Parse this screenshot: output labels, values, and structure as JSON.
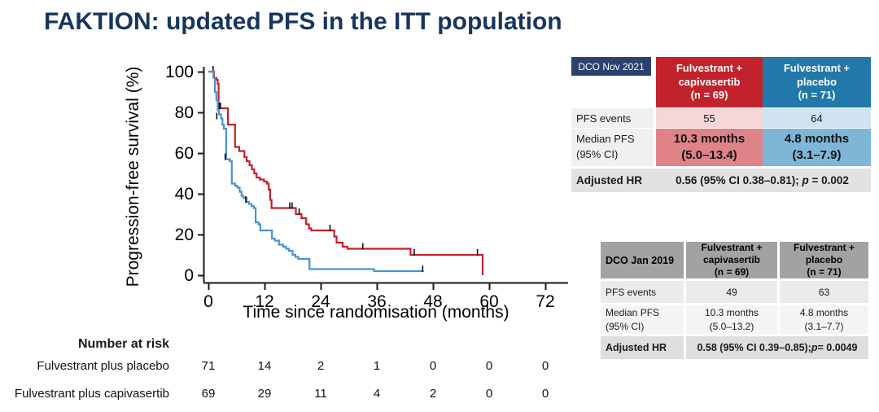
{
  "slide": {
    "title": "FAKTION: updated PFS in the ITT population"
  },
  "colors": {
    "title_navy": "#17365d",
    "chip_navy": "#2c426e",
    "capivasertib_red": "#c1222b",
    "capivasertib_red_light": "#f6d6d7",
    "capivasertib_red_mid": "#e08389",
    "placebo_blue": "#2279a9",
    "placebo_blue_light": "#cfe4f0",
    "placebo_blue_mid": "#7db6d7",
    "curve_red": "#c1222b",
    "curve_blue": "#4793ce"
  },
  "chart_data": {
    "type": "line",
    "subtype": "kaplan-meier-step",
    "xlabel": "Time since randomisation (months)",
    "ylabel": "Progression-free survival (%)",
    "xticks": [
      0,
      12,
      24,
      36,
      48,
      60,
      72
    ],
    "yticks": [
      0,
      20,
      40,
      60,
      80,
      100
    ],
    "xlim": [
      0,
      76
    ],
    "ylim": [
      0,
      100
    ],
    "grid": false,
    "legend": "none",
    "series": [
      {
        "name": "Fulvestrant plus capivasertib",
        "color": "#c1222b",
        "steps": [
          [
            0,
            100
          ],
          [
            1,
            100
          ],
          [
            1.2,
            97
          ],
          [
            1.7,
            96
          ],
          [
            2,
            94
          ],
          [
            2.2,
            82
          ],
          [
            4,
            82
          ],
          [
            4.2,
            74
          ],
          [
            5.4,
            74
          ],
          [
            5.7,
            63
          ],
          [
            6.4,
            63
          ],
          [
            6.6,
            61
          ],
          [
            7.4,
            61
          ],
          [
            7.7,
            58
          ],
          [
            8.2,
            56
          ],
          [
            8.8,
            54
          ],
          [
            9.3,
            52
          ],
          [
            9.8,
            50
          ],
          [
            10.3,
            48
          ],
          [
            11,
            47
          ],
          [
            11.9,
            46
          ],
          [
            12.5,
            45
          ],
          [
            12.9,
            42
          ],
          [
            13.2,
            37
          ],
          [
            13.5,
            33
          ],
          [
            18.4,
            33
          ],
          [
            18.7,
            30
          ],
          [
            19.9,
            28
          ],
          [
            20.9,
            25
          ],
          [
            21.5,
            23
          ],
          [
            22,
            22
          ],
          [
            26.4,
            22
          ],
          [
            26.9,
            19
          ],
          [
            27.4,
            16
          ],
          [
            28.7,
            14
          ],
          [
            29.7,
            13
          ],
          [
            42.8,
            13
          ],
          [
            43.2,
            10
          ],
          [
            58.4,
            10
          ],
          [
            58.6,
            0
          ]
        ],
        "censors": [
          [
            1,
            100
          ],
          [
            2.3,
            82
          ],
          [
            2.6,
            82
          ],
          [
            17.4,
            33
          ],
          [
            17.9,
            33
          ],
          [
            19.4,
            30
          ],
          [
            26,
            22
          ],
          [
            33,
            13
          ],
          [
            44,
            10
          ],
          [
            57.5,
            10
          ]
        ]
      },
      {
        "name": "Fulvestrant plus placebo",
        "color": "#4793ce",
        "steps": [
          [
            0,
            100
          ],
          [
            0.9,
            100
          ],
          [
            1.1,
            97
          ],
          [
            1.4,
            90
          ],
          [
            1.7,
            86
          ],
          [
            2,
            81
          ],
          [
            2.3,
            79
          ],
          [
            2.7,
            77
          ],
          [
            3,
            74
          ],
          [
            3.3,
            72
          ],
          [
            3.8,
            57
          ],
          [
            4.6,
            56
          ],
          [
            5,
            45
          ],
          [
            5.7,
            44
          ],
          [
            6.2,
            43
          ],
          [
            6.7,
            41
          ],
          [
            7.1,
            39
          ],
          [
            7.5,
            38
          ],
          [
            8.2,
            36
          ],
          [
            8.7,
            35
          ],
          [
            9.2,
            34
          ],
          [
            9.7,
            33
          ],
          [
            10.1,
            26
          ],
          [
            10.7,
            25
          ],
          [
            11.1,
            22
          ],
          [
            13.2,
            22
          ],
          [
            13.6,
            18
          ],
          [
            14.2,
            17
          ],
          [
            15.1,
            15
          ],
          [
            16,
            14
          ],
          [
            16.6,
            13
          ],
          [
            17.2,
            12
          ],
          [
            18,
            10
          ],
          [
            18.6,
            9
          ],
          [
            19.2,
            8
          ],
          [
            21.2,
            8
          ],
          [
            21.6,
            3
          ],
          [
            35,
            3
          ],
          [
            35.4,
            2
          ],
          [
            46,
            2
          ]
        ],
        "censors": [
          [
            1.8,
            77
          ],
          [
            3.6,
            57
          ],
          [
            8,
            36
          ],
          [
            45.8,
            2
          ]
        ]
      }
    ]
  },
  "at_risk": {
    "header": "Number at risk",
    "times": [
      0,
      12,
      24,
      36,
      48,
      60,
      72
    ],
    "rows": [
      {
        "label": "Fulvestrant plus placebo",
        "values": [
          "71",
          "14",
          "2",
          "1",
          "0",
          "0",
          "0"
        ]
      },
      {
        "label": "Fulvestrant plus capivasertib",
        "values": [
          "69",
          "29",
          "11",
          "4",
          "2",
          "0",
          "0"
        ]
      }
    ]
  },
  "results_2021": {
    "dco_label": "DCO Nov 2021",
    "col_capivasertib": {
      "lines": [
        "Fulvestrant +",
        "capivasertib",
        "(n = 69)"
      ]
    },
    "col_placebo": {
      "lines": [
        "Fulvestrant +",
        "placebo",
        "(n = 71)"
      ]
    },
    "pfs_events": {
      "label": "PFS events",
      "capivasertib": "55",
      "placebo": "64"
    },
    "median_pfs": {
      "label": [
        "Median PFS",
        "(95% CI)"
      ],
      "capivasertib": [
        "10.3 months",
        "(5.0–13.4)"
      ],
      "placebo": [
        "4.8 months",
        "(3.1–7.9)"
      ]
    },
    "adjusted_hr": {
      "label": "Adjusted HR",
      "pre": "0.56 (95% CI 0.38–0.81); ",
      "p": "p",
      "post": " = 0.002"
    }
  },
  "results_2019": {
    "dco_label": "DCO Jan 2019",
    "col_capivasertib": {
      "lines": [
        "Fulvestrant +",
        "capivasertib",
        "(n = 69)"
      ]
    },
    "col_placebo": {
      "lines": [
        "Fulvestrant +",
        "placebo",
        "(n = 71)"
      ]
    },
    "pfs_events": {
      "label": "PFS events",
      "capivasertib": "49",
      "placebo": "63"
    },
    "median_pfs": {
      "label": [
        "Median PFS",
        "(95% CI)"
      ],
      "capivasertib": [
        "10.3 months",
        "(5.0–13.2)"
      ],
      "placebo": [
        "4.8 months",
        "(3.1–7.7)"
      ]
    },
    "adjusted_hr": {
      "label": "Adjusted HR",
      "pre": "0.58 (95% CI 0.39–0.85); ",
      "p": "p",
      "post": " = 0.0049"
    }
  }
}
